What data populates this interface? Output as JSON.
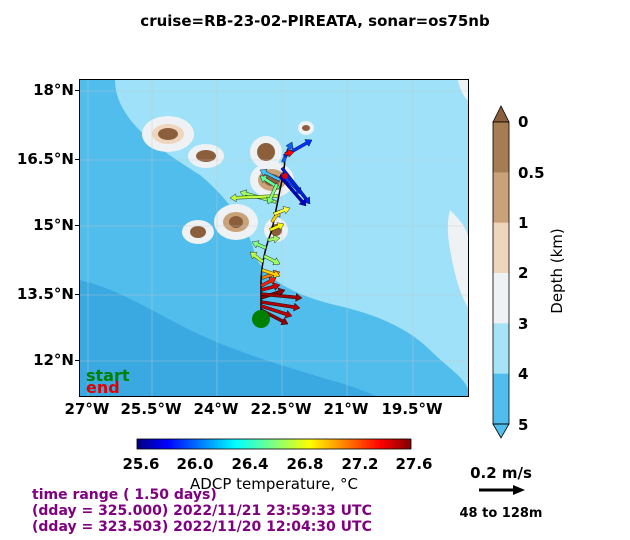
{
  "title": "cruise=RB-23-02-PIREATA,   sonar=os75nb",
  "map": {
    "lat_ticks": [
      "18°N",
      "16.5°N",
      "15°N",
      "13.5°N",
      "12°N"
    ],
    "lon_ticks": [
      "27°W",
      "25.5°W",
      "24°W",
      "22.5°W",
      "21°W",
      "19.5°W"
    ],
    "legend_start": "start",
    "legend_end": "end",
    "start_color": "#008000",
    "end_color": "#e00000"
  },
  "depth_colorbar": {
    "labels": [
      "0",
      "0.5",
      "1",
      "2",
      "3",
      "4",
      "5"
    ],
    "axis_label": "Depth (km)",
    "colors": [
      "#a67c52",
      "#c9a27a",
      "#f0d5bd",
      "#eef2f5",
      "#a7e3f7",
      "#51bdec"
    ]
  },
  "temp_colorbar": {
    "labels": [
      "25.6",
      "26.0",
      "26.4",
      "26.8",
      "27.2",
      "27.6"
    ],
    "axis_label": "ADCP temperature, °C"
  },
  "info": {
    "line1": "time range ( 1.50 days)",
    "line2": "(dday = 325.000) 2022/11/21 23:59:33 UTC",
    "line3": "(dday = 323.503) 2022/11/20 12:04:30 UTC"
  },
  "scale": {
    "speed_label": "0.2 m/s",
    "range_label": "48 to 128m"
  }
}
